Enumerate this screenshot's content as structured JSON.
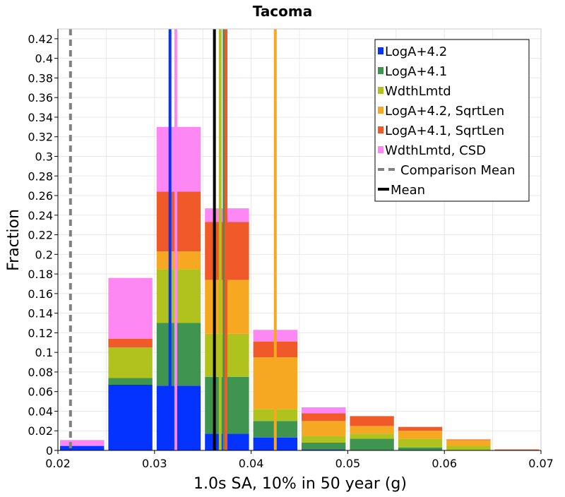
{
  "chart_data": {
    "type": "bar",
    "stacked": true,
    "title": "Tacoma",
    "xlabel": "1.0s SA, 10% in 50 year (g)",
    "ylabel": "Fraction",
    "xlim": [
      0.02,
      0.07
    ],
    "ylim": [
      0,
      0.43
    ],
    "grid": true,
    "legend_position": "top-right",
    "bin_width": 0.005,
    "xticks": [
      0.02,
      0.03,
      0.04,
      0.05,
      0.06,
      0.07
    ],
    "xtick_labels": [
      "0.02",
      "0.03",
      "0.04",
      "0.05",
      "0.06",
      "0.07"
    ],
    "yticks": [
      0,
      0.02,
      0.04,
      0.06,
      0.08,
      0.1,
      0.12,
      0.14,
      0.16,
      0.18,
      0.2,
      0.22,
      0.24,
      0.26,
      0.28,
      0.3,
      0.32,
      0.34,
      0.36,
      0.38,
      0.4,
      0.42
    ],
    "ytick_labels": [
      "0",
      "0.02",
      "0.04",
      "0.06",
      "0.08",
      "0.1",
      "0.12",
      "0.14",
      "0.16",
      "0.18",
      "0.2",
      "0.22",
      "0.24",
      "0.26",
      "0.28",
      "0.3",
      "0.32",
      "0.34",
      "0.36",
      "0.38",
      "0.4",
      "0.42"
    ],
    "bins": [
      0.02,
      0.025,
      0.03,
      0.035,
      0.04,
      0.045,
      0.05,
      0.055,
      0.06,
      0.065
    ],
    "series": [
      {
        "name": "LogA+4.2",
        "color": "#0433ff",
        "values": [
          0.0046,
          0.067,
          0.066,
          0.017,
          0.013,
          0.001,
          0.0,
          0.0,
          0.0,
          0.0
        ]
      },
      {
        "name": "LogA+4.1",
        "color": "#3f954f",
        "values": [
          0.0,
          0.007,
          0.064,
          0.058,
          0.017,
          0.007,
          0.012,
          0.003,
          0.0,
          0.0
        ]
      },
      {
        "name": "WdthLmtd",
        "color": "#b0c21e",
        "values": [
          0.0,
          0.031,
          0.055,
          0.044,
          0.012,
          0.007,
          0.005,
          0.009,
          0.005,
          0.0
        ]
      },
      {
        "name": "LogA+4.2, SqrtLen",
        "color": "#f7a823",
        "values": [
          0.0,
          0.0,
          0.018,
          0.055,
          0.053,
          0.015,
          0.008,
          0.008,
          0.006,
          0.0008
        ]
      },
      {
        "name": "LogA+4.1, SqrtLen",
        "color": "#f05a28",
        "values": [
          0.0,
          0.009,
          0.061,
          0.059,
          0.016,
          0.008,
          0.01,
          0.004,
          0.0002,
          0.0002
        ]
      },
      {
        "name": "WdthLmtd, CSD",
        "color": "#fd87f3",
        "values": [
          0.006,
          0.062,
          0.066,
          0.014,
          0.012,
          0.006,
          0.0,
          0.0,
          0.0,
          0.0
        ]
      }
    ],
    "mean_lines": [
      {
        "series": "LogA+4.2",
        "x": 0.0316,
        "color": "#0433ff"
      },
      {
        "series": "WdthLmtd, CSD",
        "x": 0.0322,
        "color": "#fd87f3"
      },
      {
        "series": "WdthLmtd",
        "x": 0.0368,
        "color": "#b0c21e"
      },
      {
        "series": "LogA+4.1",
        "x": 0.0372,
        "color": "#3f954f"
      },
      {
        "series": "LogA+4.1, SqrtLen",
        "x": 0.0374,
        "color": "#f05a28"
      },
      {
        "series": "LogA+4.2, SqrtLen",
        "x": 0.0425,
        "color": "#f7a823"
      }
    ],
    "overall_mean": {
      "name": "Mean",
      "x": 0.0362,
      "color": "#000000"
    },
    "comparison_mean": {
      "name": "Comparison Mean",
      "x": 0.0213,
      "color": "#808080"
    },
    "legend": [
      {
        "label": "LogA+4.2",
        "color": "#0433ff",
        "kind": "box"
      },
      {
        "label": "LogA+4.1",
        "color": "#3f954f",
        "kind": "box"
      },
      {
        "label": "WdthLmtd",
        "color": "#b0c21e",
        "kind": "box"
      },
      {
        "label": "LogA+4.2, SqrtLen",
        "color": "#f7a823",
        "kind": "box"
      },
      {
        "label": "LogA+4.1, SqrtLen",
        "color": "#f05a28",
        "kind": "box"
      },
      {
        "label": "WdthLmtd, CSD",
        "color": "#fd87f3",
        "kind": "box"
      },
      {
        "label": "Comparison Mean",
        "color": "#808080",
        "kind": "dashed"
      },
      {
        "label": "Mean",
        "color": "#000000",
        "kind": "line"
      }
    ]
  }
}
